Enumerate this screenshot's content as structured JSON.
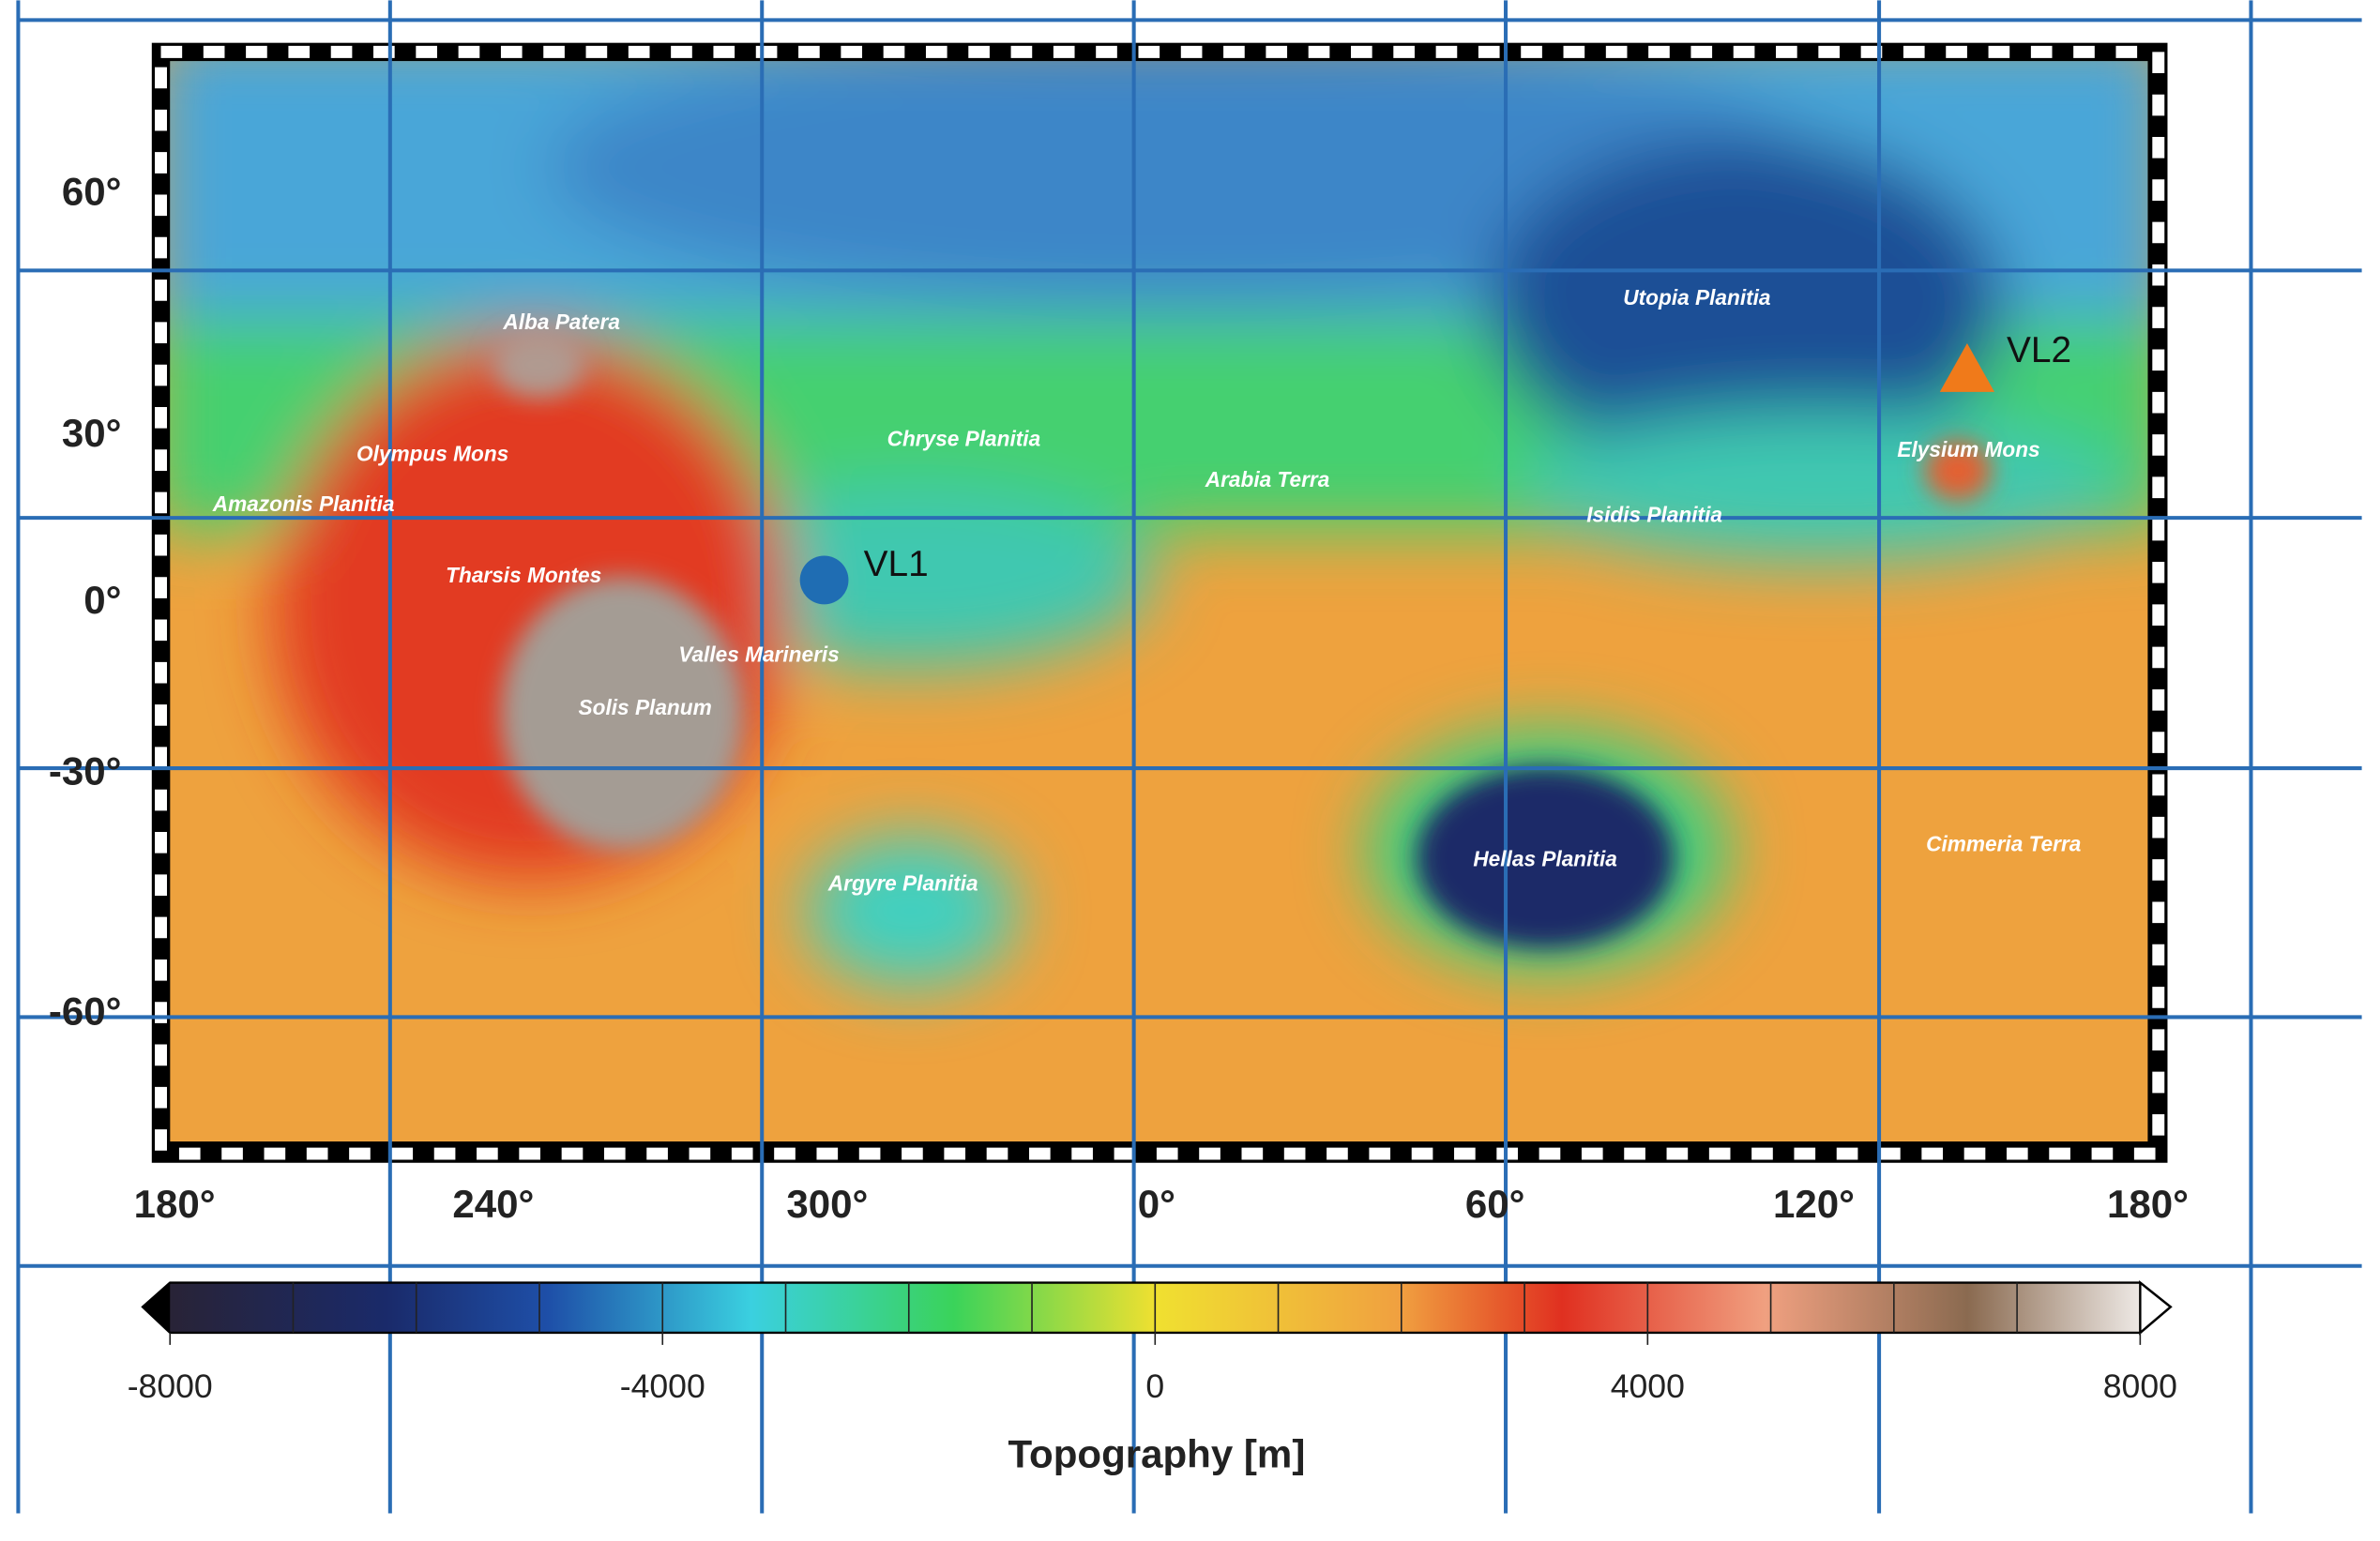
{
  "map": {
    "latitude_labels": [
      "60°",
      "30°",
      "0°",
      "-30°",
      "-60°"
    ],
    "longitude_labels": [
      "180°",
      "240°",
      "300°",
      "0°",
      "60°",
      "120°",
      "180°"
    ],
    "places": [
      "Alba Patera",
      "Olympus Mons",
      "Amazonis Planitia",
      "Tharsis Montes",
      "Valles Marineris",
      "Solis Planum",
      "Chryse Planitia",
      "Arabia Terra",
      "Utopia Planitia",
      "Elysium Mons",
      "Isidis Planitia",
      "Hellas Planitia",
      "Argyre Planitia",
      "Cimmeria Terra"
    ],
    "sites": [
      "VL1",
      "VL2"
    ],
    "colorbar": {
      "title": "Topography [m]",
      "ticks": [
        -8000,
        -4000,
        0,
        4000,
        8000
      ]
    }
  }
}
